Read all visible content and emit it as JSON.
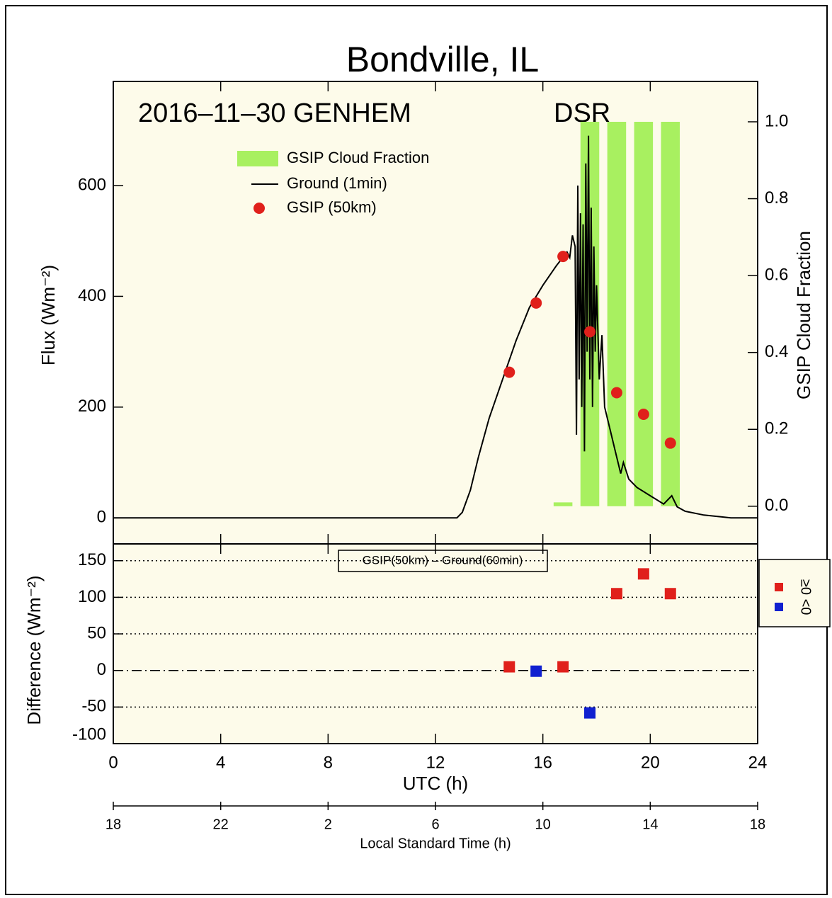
{
  "chart_data": [
    {
      "type": "combo",
      "title": "Bondville, IL",
      "annotation": "2016–11–30 GENHEM",
      "label": "DSR",
      "ylabel": "Flux (Wm⁻²)",
      "y2label": "GSIP Cloud Fraction",
      "xlim": [
        0,
        24
      ],
      "ylim": [
        -47,
        788
      ],
      "yticks": [
        0,
        200,
        400,
        600
      ],
      "y2lim": [
        -0.098,
        1.105
      ],
      "y2ticks": [
        {
          "value": 0,
          "label": "0.0"
        },
        0.2,
        0.4,
        0.6,
        0.8,
        {
          "value": 1,
          "label": "1.0"
        }
      ],
      "series": [
        {
          "name": "GSIP Cloud Fraction",
          "type": "bar",
          "axis": "y2",
          "color": "#a8f060",
          "x": [
            16.75,
            17.75,
            18.75,
            19.75,
            20.75
          ],
          "values": [
            0.01,
            1.0,
            1.0,
            1.0,
            1.0
          ]
        },
        {
          "name": "Ground (1min)",
          "type": "line",
          "color": "#000000",
          "x": [
            0,
            12.8,
            13.0,
            13.3,
            13.6,
            14,
            14.5,
            15,
            15.5,
            16,
            16.5,
            16.9,
            17.0,
            17.1,
            17.2,
            17.25,
            17.3,
            17.35,
            17.4,
            17.45,
            17.5,
            17.55,
            17.6,
            17.65,
            17.7,
            17.75,
            17.8,
            17.85,
            17.9,
            17.95,
            18.0,
            18.1,
            18.2,
            18.3,
            18.5,
            18.7,
            18.9,
            19.0,
            19.2,
            19.5,
            20,
            20.5,
            20.8,
            21.0,
            21.3,
            22,
            23,
            24
          ],
          "values": [
            0,
            0,
            10,
            50,
            110,
            180,
            250,
            320,
            380,
            420,
            455,
            480,
            470,
            510,
            490,
            150,
            600,
            250,
            550,
            200,
            530,
            120,
            640,
            300,
            690,
            250,
            560,
            200,
            490,
            300,
            420,
            250,
            330,
            200,
            160,
            120,
            80,
            100,
            70,
            55,
            40,
            25,
            40,
            20,
            12,
            5,
            0,
            0
          ]
        },
        {
          "name": "GSIP (50km)",
          "type": "scatter",
          "color": "#e0201b",
          "x": [
            14.75,
            15.75,
            16.75,
            17.75,
            18.75,
            19.75,
            20.75
          ],
          "values": [
            263,
            388,
            472,
            336,
            226,
            187,
            135
          ]
        }
      ]
    },
    {
      "type": "scatter",
      "ylabel": "Difference (Wm⁻²)",
      "annotation": "GSIP(50km) – Ground(60min)",
      "xlabel": "UTC (h)",
      "xlim": [
        0,
        24
      ],
      "xticks": [
        0,
        4,
        8,
        12,
        16,
        20,
        24
      ],
      "ylim": [
        -100,
        173
      ],
      "yticks": [
        -100,
        -50,
        0,
        50,
        100,
        150
      ],
      "series": [
        {
          "name": "≥0",
          "color": "#e0201b",
          "x": [
            14.75,
            16.75,
            18.75,
            19.75,
            20.75
          ],
          "values": [
            5,
            5,
            105,
            132,
            105
          ]
        },
        {
          "name": "<0",
          "color": "#1020d0",
          "x": [
            15.75,
            17.75
          ],
          "values": [
            -1,
            -58
          ]
        }
      ],
      "x2label": "Local Standard Time (h)",
      "x2ticks": [
        {
          "value": 0,
          "label": "18"
        },
        {
          "value": 4,
          "label": "22"
        },
        {
          "value": 8,
          "label": "2"
        },
        {
          "value": 12,
          "label": "6"
        },
        {
          "value": 16,
          "label": "10"
        },
        {
          "value": 20,
          "label": "14"
        },
        {
          "value": 24,
          "label": "18"
        }
      ]
    }
  ]
}
